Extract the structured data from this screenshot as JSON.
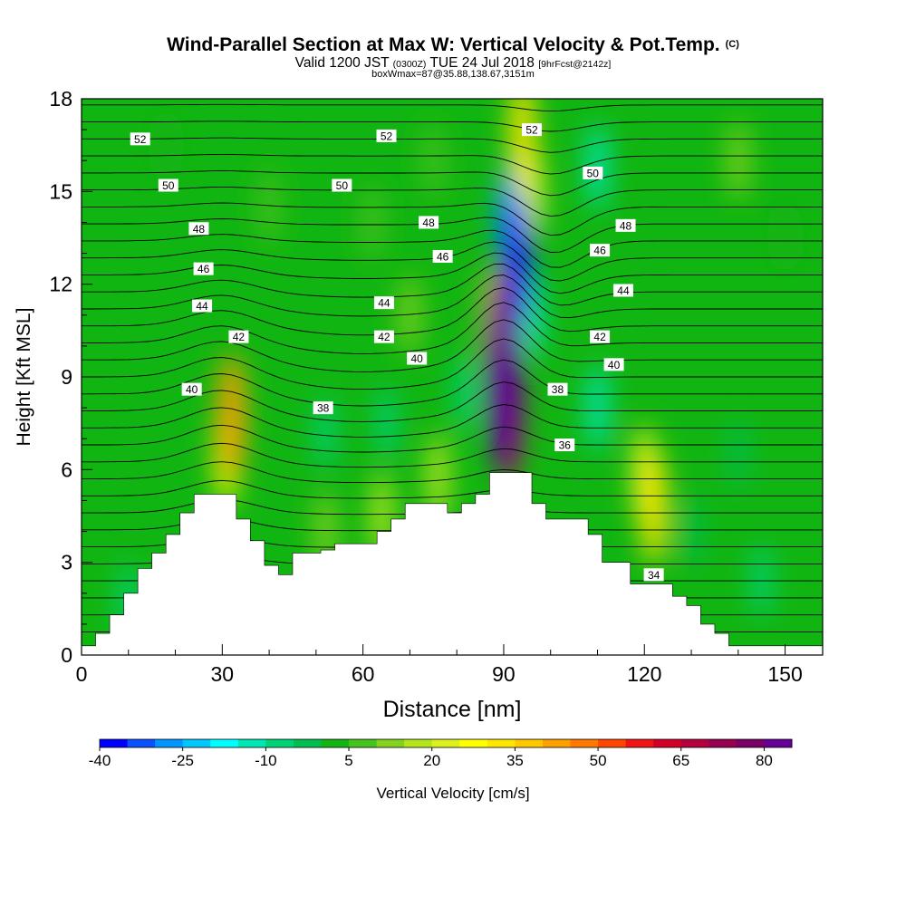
{
  "title": {
    "main": "Wind-Parallel Section at Max W: Vertical Velocity & Pot.Temp.",
    "copyright": "(C)",
    "valid_prefix": "Valid 1200 JST",
    "valid_utc": "(0300Z)",
    "valid_date": "TUE 24 Jul 2018",
    "forecast_info": "[9hrFcst@2142z]",
    "box_info": "boxWmax=87@35.88,138.67,3151m"
  },
  "colors": {
    "background_green": "#11b511",
    "terrain": "#ffffff",
    "contour": "#000000",
    "palette": [
      "#0000ff",
      "#0a50ff",
      "#0096ff",
      "#00c8ff",
      "#00ffff",
      "#00e6b4",
      "#00d278",
      "#00be50",
      "#14b414",
      "#46c31e",
      "#82d21e",
      "#b4e61e",
      "#dcf01e",
      "#ffff00",
      "#ffe600",
      "#ffc800",
      "#ffa000",
      "#ff7800",
      "#ff4600",
      "#f01414",
      "#d20028",
      "#b4003c",
      "#960050",
      "#780064",
      "#640096"
    ]
  },
  "chart_data": {
    "type": "heatmap",
    "xlabel": "Distance [nm]",
    "ylabel": "Height [Kft MSL]",
    "xlim": [
      0,
      158
    ],
    "ylim": [
      0,
      18
    ],
    "x_ticks": [
      0,
      30,
      60,
      90,
      120,
      150
    ],
    "y_ticks": [
      0,
      3,
      6,
      9,
      12,
      15,
      18
    ],
    "colorbar": {
      "label": "Vertical Velocity [cm/s]",
      "range": [
        -40,
        85
      ],
      "step": 5,
      "tick_labels": [
        "-40",
        "-25",
        "-10",
        "5",
        "20",
        "35",
        "50",
        "65",
        "80"
      ]
    },
    "terrain_profile": {
      "x": [
        0,
        3,
        6,
        9,
        12,
        15,
        18,
        21,
        24,
        27,
        30,
        33,
        36,
        39,
        42,
        45,
        48,
        51,
        54,
        57,
        60,
        63,
        66,
        69,
        72,
        75,
        78,
        81,
        84,
        87,
        90,
        93,
        96,
        99,
        102,
        105,
        108,
        111,
        114,
        117,
        120,
        123,
        126,
        129,
        132,
        135,
        138,
        141,
        144,
        147,
        150,
        153,
        156,
        158
      ],
      "height_kft": [
        0.3,
        0.7,
        1.3,
        2.0,
        2.8,
        3.3,
        3.9,
        4.6,
        5.2,
        5.2,
        5.2,
        4.4,
        3.7,
        2.9,
        2.6,
        3.3,
        3.3,
        3.4,
        3.6,
        3.6,
        3.6,
        4.0,
        4.4,
        4.9,
        4.9,
        4.9,
        4.6,
        4.9,
        5.2,
        5.9,
        5.9,
        5.9,
        4.9,
        4.4,
        4.4,
        4.4,
        3.9,
        3.0,
        3.0,
        2.3,
        2.3,
        2.3,
        1.9,
        1.6,
        1.0,
        0.7,
        0.3,
        0.3,
        0.3,
        0.3,
        0.3,
        0.3,
        0.3,
        0.3
      ]
    },
    "vertical_velocity_features": [
      {
        "x": 90,
        "z": 9.2,
        "w": 87
      },
      {
        "x": 91,
        "z": 8.2,
        "w": 60
      },
      {
        "x": 88,
        "z": 10.6,
        "w": 35
      },
      {
        "x": 32,
        "z": 7.7,
        "w": 40
      },
      {
        "x": 31,
        "z": 6.6,
        "w": 28
      },
      {
        "x": 122,
        "z": 4.8,
        "w": 32
      },
      {
        "x": 120,
        "z": 5.8,
        "w": 24
      },
      {
        "x": 94,
        "z": 16.8,
        "w": 32
      },
      {
        "x": 96,
        "z": 15.0,
        "w": 20
      },
      {
        "x": 76,
        "z": 5.7,
        "w": 18
      },
      {
        "x": 64,
        "z": 4.5,
        "w": 15
      },
      {
        "x": 52,
        "z": 4.0,
        "w": 12
      },
      {
        "x": 93,
        "z": 12.7,
        "w": -40
      },
      {
        "x": 91,
        "z": 14.0,
        "w": -28
      },
      {
        "x": 96,
        "z": 11.0,
        "w": -15
      },
      {
        "x": 110,
        "z": 8.0,
        "w": -14
      },
      {
        "x": 110,
        "z": 15.8,
        "w": -14
      },
      {
        "x": 82,
        "z": 8.5,
        "w": -10
      },
      {
        "x": 52,
        "z": 7.2,
        "w": -6
      },
      {
        "x": 65,
        "z": 7.5,
        "w": -6
      },
      {
        "x": 10,
        "z": 1.8,
        "w": -6
      },
      {
        "x": 145,
        "z": 2.4,
        "w": -6
      },
      {
        "x": 140,
        "z": 6.5,
        "w": -4
      },
      {
        "x": 130,
        "z": 4.0,
        "w": -4
      },
      {
        "x": 40,
        "z": 14.5,
        "w": 9
      },
      {
        "x": 62,
        "z": 14.0,
        "w": 9
      },
      {
        "x": 70,
        "z": 11.0,
        "w": 10
      },
      {
        "x": 18,
        "z": 16.5,
        "w": 4
      },
      {
        "x": 150,
        "z": 13.5,
        "w": 4
      },
      {
        "x": 140,
        "z": 16.0,
        "w": 10
      },
      {
        "x": 75,
        "z": 16.0,
        "w": 8
      }
    ],
    "theta_labels": [
      {
        "text": "52",
        "x": 12.5,
        "z": 16.7
      },
      {
        "text": "52",
        "x": 65,
        "z": 16.8
      },
      {
        "text": "52",
        "x": 96,
        "z": 17.0
      },
      {
        "text": "50",
        "x": 18.5,
        "z": 15.2
      },
      {
        "text": "50",
        "x": 55.5,
        "z": 15.2
      },
      {
        "text": "50",
        "x": 109,
        "z": 15.6
      },
      {
        "text": "48",
        "x": 25,
        "z": 13.8
      },
      {
        "text": "48",
        "x": 74,
        "z": 14.0
      },
      {
        "text": "48",
        "x": 116,
        "z": 13.9
      },
      {
        "text": "46",
        "x": 26,
        "z": 12.5
      },
      {
        "text": "46",
        "x": 77,
        "z": 12.9
      },
      {
        "text": "46",
        "x": 110.5,
        "z": 13.1
      },
      {
        "text": "44",
        "x": 25.7,
        "z": 11.3
      },
      {
        "text": "44",
        "x": 64.5,
        "z": 11.4
      },
      {
        "text": "44",
        "x": 115.5,
        "z": 11.8
      },
      {
        "text": "42",
        "x": 33.5,
        "z": 10.3
      },
      {
        "text": "42",
        "x": 64.5,
        "z": 10.3
      },
      {
        "text": "42",
        "x": 110.5,
        "z": 10.3
      },
      {
        "text": "40",
        "x": 23.5,
        "z": 8.6
      },
      {
        "text": "40",
        "x": 71.5,
        "z": 9.6
      },
      {
        "text": "40",
        "x": 113.5,
        "z": 9.4
      },
      {
        "text": "38",
        "x": 51.5,
        "z": 8.0
      },
      {
        "text": "38",
        "x": 101.5,
        "z": 8.6
      },
      {
        "text": "36",
        "x": 103,
        "z": 6.8
      },
      {
        "text": "34",
        "x": 122,
        "z": 2.6
      }
    ]
  }
}
